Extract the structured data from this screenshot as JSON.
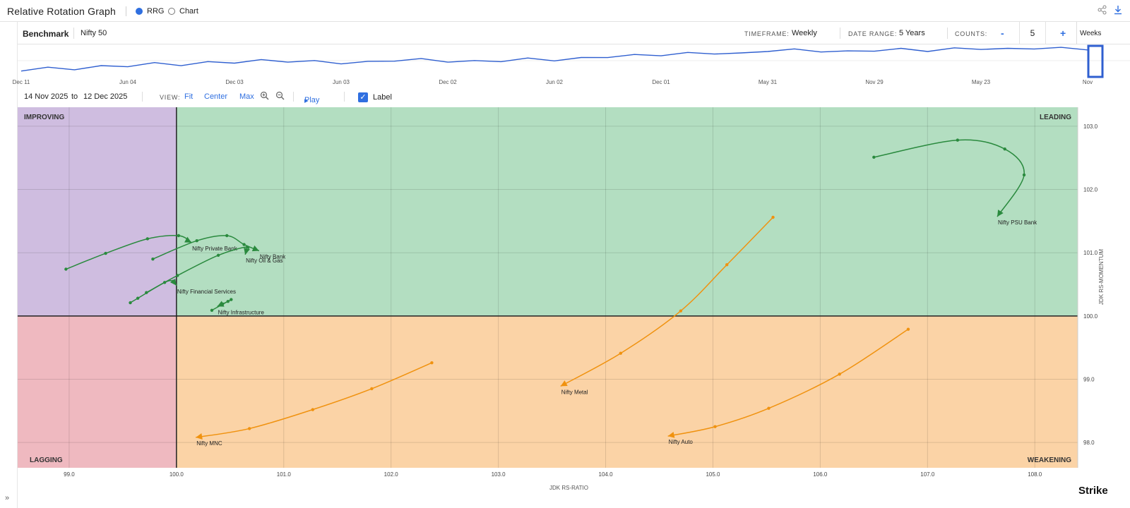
{
  "app": {
    "title": "Relative Rotation Graph"
  },
  "mode": {
    "rrg_label": "RRG",
    "chart_label": "Chart",
    "selected": "RRG"
  },
  "controls": {
    "benchmark_label": "Benchmark",
    "benchmark_value": "Nifty 50",
    "timeframe_label": "TIMEFRAME:",
    "timeframe_value": "Weekly",
    "date_range_label": "DATE RANGE:",
    "date_range_value": "5 Years",
    "counts_label": "COUNTS:",
    "counts_minus": "-",
    "counts_value": "5",
    "counts_plus": "+",
    "counts_unit": "Weeks"
  },
  "overview": {
    "x_ticks": [
      "Dec 11",
      "Jun 04",
      "Dec 03",
      "Jun 03",
      "Dec 02",
      "Jun 02",
      "Dec 01",
      "May 31",
      "Nov 29",
      "May 23",
      "Nov"
    ],
    "line_color": "#2f5fd0",
    "series": [
      0.05,
      0.12,
      0.1,
      0.18,
      0.22,
      0.3,
      0.26,
      0.34,
      0.36,
      0.42,
      0.4,
      0.38,
      0.33,
      0.35,
      0.44,
      0.46,
      0.4,
      0.38,
      0.42,
      0.48,
      0.45,
      0.5,
      0.58,
      0.62,
      0.65,
      0.7,
      0.72,
      0.68,
      0.82,
      0.84,
      0.8,
      0.76,
      0.83,
      0.86,
      0.82,
      0.88,
      0.9,
      0.86,
      0.92,
      0.9,
      0.88
    ]
  },
  "view": {
    "date_from": "14 Nov 2025",
    "to_label": "to",
    "date_to": "12 Dec 2025",
    "view_label": "VIEW:",
    "fit": "Fit",
    "center": "Center",
    "max": "Max",
    "zoom_in_icon": "zoom-in-icon",
    "zoom_out_icon": "zoom-out-icon",
    "play": "Play",
    "label_toggle": "Label",
    "label_checked": true
  },
  "brand": {
    "logo_text": "Strike"
  },
  "chart_data": {
    "type": "scatter",
    "title": "",
    "xlabel": "JDK RS-RATIO",
    "ylabel": "JDK RS-MOMENTUM",
    "xlim": [
      98.52,
      108.4
    ],
    "ylim": [
      97.6,
      103.3
    ],
    "x_ticks": [
      "99.0",
      "100.0",
      "101.0",
      "102.0",
      "103.0",
      "104.0",
      "105.0",
      "106.0",
      "107.0",
      "108.0"
    ],
    "y_ticks": [
      "98.0",
      "99.0",
      "100.0",
      "101.0",
      "102.0",
      "103.0"
    ],
    "quadrants": {
      "improving": {
        "label": "IMPROVING",
        "color": "#cfbde0"
      },
      "leading": {
        "label": "LEADING",
        "color": "#b3dec1"
      },
      "lagging": {
        "label": "LAGGING",
        "color": "#efb9c0"
      },
      "weakening": {
        "label": "WEAKENING",
        "color": "#fbd3a6"
      }
    },
    "center": [
      100.0,
      100.0
    ],
    "series": [
      {
        "name": "Nifty PSU Bank",
        "color": "#2a8a3e",
        "points": [
          [
            106.5,
            102.51
          ],
          [
            107.28,
            102.78
          ],
          [
            107.72,
            102.64
          ],
          [
            107.9,
            102.23
          ],
          [
            107.65,
            101.57
          ]
        ]
      },
      {
        "name": "Nifty Private Bank",
        "color": "#2a8a3e",
        "points": [
          [
            98.97,
            100.74
          ],
          [
            99.34,
            100.99
          ],
          [
            99.73,
            101.22
          ],
          [
            100.02,
            101.27
          ],
          [
            100.14,
            101.16
          ]
        ]
      },
      {
        "name": "Nifty Bank",
        "color": "#2a8a3e",
        "points": [
          [
            99.78,
            100.9
          ],
          [
            100.19,
            101.19
          ],
          [
            100.47,
            101.27
          ],
          [
            100.63,
            101.13
          ],
          [
            100.77,
            101.03
          ]
        ]
      },
      {
        "name": "Nifty Oil & Gas",
        "color": "#2a8a3e",
        "points": [
          [
            99.72,
            100.37
          ],
          [
            100.01,
            100.64
          ],
          [
            100.39,
            100.96
          ],
          [
            100.66,
            101.09
          ],
          [
            100.64,
            100.97
          ]
        ]
      },
      {
        "name": "Nifty Financial Services",
        "color": "#2a8a3e",
        "points": [
          [
            99.57,
            100.21
          ],
          [
            99.64,
            100.28
          ],
          [
            99.89,
            100.53
          ],
          [
            99.97,
            100.55
          ],
          [
            100.0,
            100.48
          ]
        ]
      },
      {
        "name": "Nifty Infrastructure",
        "color": "#2a8a3e",
        "points": [
          [
            100.33,
            100.09
          ],
          [
            100.51,
            100.26
          ],
          [
            100.48,
            100.23
          ],
          [
            100.43,
            100.19
          ],
          [
            100.38,
            100.15
          ]
        ]
      },
      {
        "name": "Nifty Metal",
        "color": "#f0920f",
        "points": [
          [
            105.56,
            101.56
          ],
          [
            105.13,
            100.81
          ],
          [
            104.7,
            100.08
          ],
          [
            104.14,
            99.41
          ],
          [
            103.58,
            98.89
          ]
        ]
      },
      {
        "name": "Nifty MNC",
        "color": "#f0920f",
        "points": [
          [
            102.38,
            99.26
          ],
          [
            101.82,
            98.85
          ],
          [
            101.27,
            98.52
          ],
          [
            100.68,
            98.22
          ],
          [
            100.18,
            98.08
          ]
        ]
      },
      {
        "name": "Nifty Auto",
        "color": "#f0920f",
        "points": [
          [
            106.82,
            99.79
          ],
          [
            106.18,
            99.08
          ],
          [
            105.52,
            98.54
          ],
          [
            105.02,
            98.25
          ],
          [
            104.58,
            98.1
          ]
        ]
      }
    ]
  }
}
